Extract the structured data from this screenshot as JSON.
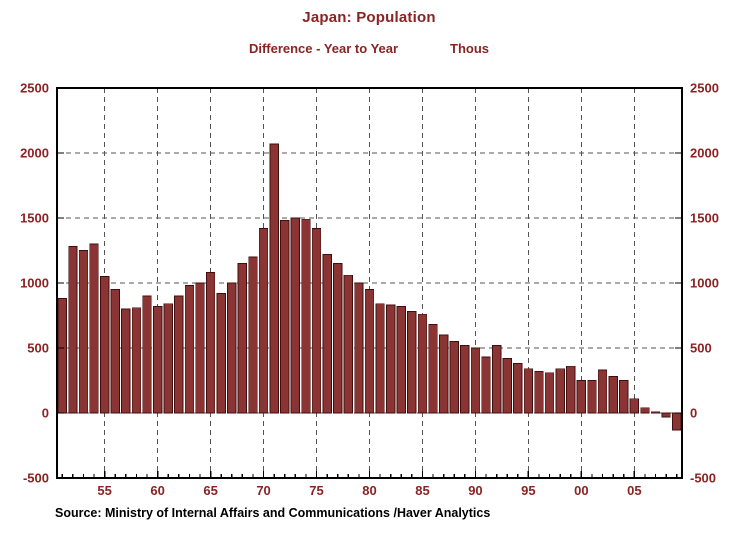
{
  "chart_data": {
    "type": "bar",
    "title": "Japan: Population",
    "subtitle_left": "Difference - Year to Year",
    "subtitle_right": "Thous",
    "source": "Source:  Ministry of Internal Affairs and Communications /Haver Analytics",
    "ylim": [
      -500,
      2500
    ],
    "y_ticks": [
      -500,
      0,
      500,
      1000,
      1500,
      2000,
      2500
    ],
    "x_tick_years": [
      1955,
      1960,
      1965,
      1970,
      1975,
      1980,
      1985,
      1990,
      1995,
      2000,
      2005
    ],
    "x_tick_labels": [
      "55",
      "60",
      "65",
      "70",
      "75",
      "80",
      "85",
      "90",
      "95",
      "00",
      "05"
    ],
    "years": [
      1951,
      1952,
      1953,
      1954,
      1955,
      1956,
      1957,
      1958,
      1959,
      1960,
      1961,
      1962,
      1963,
      1964,
      1965,
      1966,
      1967,
      1968,
      1969,
      1970,
      1971,
      1972,
      1973,
      1974,
      1975,
      1976,
      1977,
      1978,
      1979,
      1980,
      1981,
      1982,
      1983,
      1984,
      1985,
      1986,
      1987,
      1988,
      1989,
      1990,
      1991,
      1992,
      1993,
      1994,
      1995,
      1996,
      1997,
      1998,
      1999,
      2000,
      2001,
      2002,
      2003,
      2004,
      2005,
      2006,
      2007,
      2008,
      2009
    ],
    "values": [
      880,
      1280,
      1250,
      1300,
      1050,
      950,
      800,
      810,
      900,
      820,
      840,
      900,
      980,
      1000,
      1080,
      920,
      1000,
      1150,
      1200,
      1420,
      2070,
      1480,
      1500,
      1490,
      1420,
      1220,
      1150,
      1060,
      1000,
      950,
      840,
      830,
      820,
      780,
      760,
      680,
      600,
      550,
      520,
      500,
      430,
      520,
      420,
      380,
      340,
      320,
      310,
      340,
      360,
      250,
      250,
      330,
      280,
      250,
      110,
      40,
      10,
      -30,
      -130
    ],
    "bar_color": "#8a3434",
    "bar_edge_color": "#3f0f0f",
    "axis_color": "#000000",
    "grid_color": "#555555",
    "label_color": "#8B2323",
    "grid": true,
    "legend": "none"
  }
}
